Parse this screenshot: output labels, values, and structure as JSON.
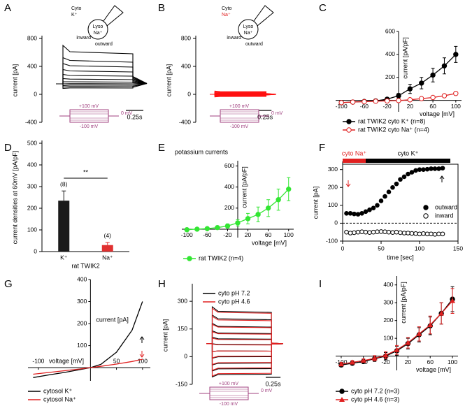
{
  "chart_data": [
    {
      "type": "traces",
      "panel_label": "A",
      "ylabel": "current [pA]",
      "ylim": [
        -400,
        800
      ],
      "yticks": [
        -400,
        0,
        400,
        800
      ],
      "xlim": [
        0,
        1.3
      ],
      "x": [
        0,
        0.1,
        0.1,
        0.2,
        1.1,
        1.1,
        1.3
      ],
      "series": [
        {
          "color": "#000000",
          "traces": [
            [
              150,
              150,
              85,
              92,
              90,
              100,
              155
            ],
            [
              150,
              150,
              105,
              112,
              110,
              115,
              155
            ],
            [
              150,
              150,
              125,
              132,
              130,
              130,
              155
            ],
            [
              150,
              150,
              150,
              152,
              150,
              150,
              155
            ],
            [
              150,
              150,
              180,
              180,
              175,
              165,
              155
            ],
            [
              150,
              150,
              225,
              218,
              210,
              180,
              155
            ],
            [
              150,
              150,
              285,
              270,
              260,
              195,
              155
            ],
            [
              150,
              150,
              355,
              335,
              320,
              210,
              155
            ],
            [
              150,
              150,
              440,
              410,
              390,
              225,
              155
            ],
            [
              150,
              150,
              525,
              485,
              460,
              240,
              155
            ],
            [
              150,
              150,
              700,
              610,
              580,
              255,
              155
            ]
          ]
        }
      ],
      "scale_bar": {
        "value": 0.25,
        "label": "0.25s"
      },
      "protocol": {
        "high": "+100 mV",
        "hold": "0 mV",
        "low": "-100 mV",
        "color": "#a0407f"
      },
      "diagram": {
        "cyto": "Cyto",
        "cyto_ion": "K⁺",
        "cyto_ion_color": "#000000",
        "lyso": "Lyso",
        "lyso_ion": "Na⁺",
        "inward": "inward",
        "outward": "outward"
      }
    },
    {
      "type": "traces",
      "panel_label": "B",
      "ylabel": "current [pA]",
      "ylim": [
        -400,
        800
      ],
      "yticks": [
        -400,
        0,
        400,
        800
      ],
      "xlim": [
        0,
        1.3
      ],
      "x": [
        0,
        0.1,
        0.1,
        0.2,
        1.1,
        1.1,
        1.3
      ],
      "series": [
        {
          "color": "#ff1010",
          "traces": [
            [
              0,
              0,
              -36,
              -31,
              -30,
              -10,
              0
            ],
            [
              0,
              0,
              -27,
              -23,
              -22,
              -8,
              0
            ],
            [
              0,
              0,
              -18,
              -16,
              -15,
              -6,
              0
            ],
            [
              0,
              0,
              -10,
              -9,
              -8,
              -4,
              0
            ],
            [
              0,
              0,
              -4,
              -3,
              -3,
              -2,
              0
            ],
            [
              0,
              0,
              4,
              3,
              3,
              2,
              0
            ],
            [
              0,
              0,
              10,
              9,
              8,
              4,
              0
            ],
            [
              0,
              0,
              17,
              15,
              14,
              6,
              0
            ],
            [
              0,
              0,
              24,
              21,
              20,
              8,
              0
            ],
            [
              0,
              0,
              34,
              29,
              28,
              10,
              0
            ],
            [
              0,
              0,
              46,
              40,
              38,
              12,
              0
            ]
          ]
        }
      ],
      "scale_bar": {
        "value": 0.25,
        "label": "0.25s"
      },
      "protocol": {
        "high": "+100 mV",
        "hold": "0 mV",
        "low": "-100 mV",
        "color": "#a0407f"
      },
      "diagram": {
        "cyto": "Cyto",
        "cyto_ion": "Na⁺",
        "cyto_ion_color": "#e02020",
        "lyso": "Lyso",
        "lyso_ion": "Na⁺",
        "inward": "inward",
        "outward": "outward"
      }
    },
    {
      "type": "line",
      "panel_label": "C",
      "xlabel": "voltage [mV]",
      "ylabel": "current [pA/pF]",
      "xlim": [
        -110,
        110
      ],
      "ylim": [
        -100,
        600
      ],
      "xticks": [
        -100,
        -60,
        -20,
        20,
        60,
        100
      ],
      "yticks": [
        200,
        400,
        600
      ],
      "x": [
        -100,
        -80,
        -60,
        -40,
        -20,
        0,
        20,
        40,
        60,
        80,
        100
      ],
      "series": [
        {
          "name": "rat TWIK2 cyto K⁺ (n=8)",
          "color": "#000000",
          "marker": "filled",
          "values": [
            -20,
            -15,
            -10,
            -5,
            10,
            40,
            100,
            150,
            220,
            300,
            400
          ],
          "errors": [
            5,
            5,
            5,
            5,
            10,
            20,
            40,
            50,
            60,
            70,
            70
          ]
        },
        {
          "name": "rat TWIK2 cyto Na⁺ (n=4)",
          "color": "#e02020",
          "marker": "open",
          "values": [
            -20,
            -15,
            -12,
            -8,
            -5,
            -2,
            5,
            15,
            25,
            40,
            60
          ],
          "errors": [
            5,
            5,
            5,
            5,
            5,
            5,
            5,
            5,
            10,
            10,
            15
          ]
        }
      ]
    },
    {
      "type": "bar",
      "panel_label": "D",
      "ylabel": "current densities at 60mV [pA/pF]",
      "xlabel": "rat TWIK2",
      "ylim": [
        0,
        500
      ],
      "yticks": [
        0,
        100,
        200,
        300,
        400,
        500
      ],
      "categories": [
        "K⁺",
        "Na⁺"
      ],
      "values": [
        235,
        30
      ],
      "errors": [
        45,
        12
      ],
      "colors": [
        "#1a1a1a",
        "#e03030"
      ],
      "n_labels": [
        "(8)",
        "(4)"
      ],
      "significance": "**"
    },
    {
      "type": "line",
      "panel_label": "E",
      "title": "potassium currents",
      "xlabel": "voltage [mV]",
      "ylabel": "current [pA/pF]",
      "xlim": [
        -110,
        110
      ],
      "ylim": [
        -80,
        650
      ],
      "xticks": [
        -100,
        -60,
        -20,
        20,
        60,
        100
      ],
      "yticks": [
        200,
        400,
        600
      ],
      "x": [
        -100,
        -80,
        -60,
        -40,
        -20,
        0,
        20,
        40,
        60,
        80,
        100
      ],
      "series": [
        {
          "name": "rat TWIK2 (n=4)",
          "color": "#33e633",
          "marker": "filled",
          "values": [
            -5,
            0,
            5,
            15,
            30,
            60,
            100,
            140,
            200,
            280,
            380
          ],
          "errors": [
            5,
            5,
            10,
            15,
            20,
            30,
            50,
            70,
            80,
            100,
            110
          ]
        }
      ]
    },
    {
      "type": "scatter",
      "panel_label": "F",
      "xlabel": "time [sec]",
      "ylabel": "current [pA]",
      "xlim": [
        0,
        150
      ],
      "ylim": [
        -100,
        330
      ],
      "xticks": [
        0,
        50,
        100,
        150
      ],
      "yticks": [
        -100,
        0,
        100,
        200,
        300
      ],
      "zero_line": true,
      "bands": [
        {
          "label": "cyto Na⁺",
          "range": [
            0,
            30
          ],
          "color": "#e02020"
        },
        {
          "label": "cyto K⁺",
          "range": [
            30,
            140
          ],
          "color": "#000000"
        }
      ],
      "x": [
        5,
        10,
        15,
        20,
        25,
        30,
        35,
        40,
        45,
        50,
        55,
        60,
        65,
        70,
        75,
        80,
        85,
        90,
        95,
        100,
        105,
        110,
        115,
        120,
        125,
        130
      ],
      "series": [
        {
          "name": "outward",
          "color": "#000000",
          "marker": "filled",
          "values": [
            55,
            55,
            52,
            50,
            55,
            65,
            75,
            85,
            100,
            125,
            150,
            175,
            200,
            220,
            245,
            260,
            275,
            285,
            295,
            300,
            300,
            302,
            305,
            305,
            305,
            308
          ]
        },
        {
          "name": "inward",
          "color": "#000000",
          "marker": "open",
          "values": [
            -50,
            -55,
            -53,
            -50,
            -48,
            -50,
            -52,
            -50,
            -48,
            -47,
            -48,
            -50,
            -52,
            -50,
            -53,
            -55,
            -55,
            -57,
            -58,
            -60,
            -58,
            -60,
            -60,
            -62,
            -60,
            -60
          ]
        }
      ]
    },
    {
      "type": "line",
      "panel_label": "G",
      "xlabel": "voltage [mV]",
      "ylabel": "current [pA]",
      "xlim": [
        -120,
        115
      ],
      "ylim": [
        -60,
        400
      ],
      "xticks": [
        -100,
        50,
        100
      ],
      "yticks": [
        100,
        200,
        300,
        400
      ],
      "x": [
        -110,
        -80,
        -50,
        -20,
        0,
        20,
        50,
        80,
        100
      ],
      "series": [
        {
          "name": "cytosol K⁺",
          "color": "#000000",
          "marker": "none",
          "values": [
            -45,
            -33,
            -22,
            -9,
            0,
            15,
            70,
            170,
            300
          ]
        },
        {
          "name": "cytosol Na⁺",
          "color": "#e02020",
          "marker": "none",
          "values": [
            -30,
            -22,
            -14,
            -6,
            0,
            6,
            16,
            28,
            38
          ]
        }
      ]
    },
    {
      "type": "traces",
      "panel_label": "H",
      "ylabel": "current [pA]",
      "ylim": [
        -150,
        380
      ],
      "yticks": [
        -150,
        0,
        150,
        300
      ],
      "xlim": [
        0,
        1.3
      ],
      "x": [
        0,
        0.1,
        0.1,
        0.2,
        1.1,
        1.1,
        1.3
      ],
      "series": [
        {
          "name": "cyto pH 7.2",
          "color": "#000000",
          "traces": [
            [
              70,
              70,
              -110,
              -97,
              -95,
              68,
              70
            ],
            [
              70,
              70,
              -78,
              -66,
              -65,
              68,
              70
            ],
            [
              70,
              70,
              -45,
              -36,
              -35,
              69,
              70
            ],
            [
              70,
              70,
              -8,
              -1,
              0,
              69,
              70
            ],
            [
              70,
              70,
              28,
              31,
              30,
              70,
              70
            ],
            [
              70,
              70,
              70,
              66,
              65,
              70,
              70
            ],
            [
              70,
              70,
              105,
              97,
              95,
              71,
              70
            ],
            [
              70,
              70,
              140,
              128,
              125,
              72,
              70
            ],
            [
              70,
              70,
              180,
              164,
              160,
              72,
              70
            ],
            [
              70,
              70,
              225,
              205,
              200,
              73,
              70
            ],
            [
              70,
              70,
              270,
              246,
              240,
              74,
              70
            ]
          ]
        },
        {
          "name": "cyto pH 4.6",
          "color": "#e02020",
          "traces": [
            [
              70,
              70,
              -105,
              -92,
              -90,
              68,
              70
            ],
            [
              70,
              70,
              -74,
              -62,
              -60,
              68,
              70
            ],
            [
              70,
              70,
              -42,
              -33,
              -32,
              69,
              70
            ],
            [
              70,
              70,
              -6,
              2,
              3,
              69,
              70
            ],
            [
              70,
              70,
              28,
              31,
              30,
              70,
              70
            ],
            [
              70,
              70,
              68,
              64,
              63,
              70,
              70
            ],
            [
              70,
              70,
              100,
              93,
              92,
              71,
              70
            ],
            [
              70,
              70,
              135,
              124,
              122,
              72,
              70
            ],
            [
              70,
              70,
              175,
              160,
              157,
              72,
              70
            ],
            [
              70,
              70,
              218,
              199,
              195,
              73,
              70
            ],
            [
              70,
              70,
              262,
              240,
              235,
              74,
              70
            ]
          ]
        }
      ],
      "scale_bar": {
        "value": 0.25,
        "label": "0.25s"
      },
      "protocol": {
        "high": "+100 mV",
        "hold": "0 mV",
        "low": "-100 mV",
        "color": "#a0407f"
      }
    },
    {
      "type": "line",
      "panel_label": "I",
      "xlabel": "voltage [mV]",
      "ylabel": "current [pA/pF]",
      "xlim": [
        -110,
        110
      ],
      "ylim": [
        -80,
        450
      ],
      "xticks": [
        -100,
        -60,
        -20,
        20,
        60,
        100
      ],
      "yticks": [
        100,
        200,
        300,
        400
      ],
      "x": [
        -100,
        -80,
        -60,
        -40,
        -20,
        0,
        20,
        40,
        60,
        80,
        100
      ],
      "series": [
        {
          "name": "cyto pH 7.2 (n=3)",
          "color": "#000000",
          "marker": "filled",
          "values": [
            -50,
            -40,
            -30,
            -15,
            0,
            30,
            70,
            120,
            170,
            240,
            320
          ],
          "errors": [
            10,
            10,
            10,
            15,
            20,
            25,
            30,
            40,
            50,
            60,
            70
          ]
        },
        {
          "name": "cyto pH 4.6 (n=3)",
          "color": "#e02020",
          "marker": "triangle",
          "values": [
            -45,
            -35,
            -25,
            -12,
            5,
            35,
            75,
            125,
            175,
            240,
            310
          ],
          "errors": [
            10,
            10,
            10,
            15,
            20,
            25,
            30,
            40,
            50,
            60,
            70
          ]
        }
      ]
    }
  ]
}
